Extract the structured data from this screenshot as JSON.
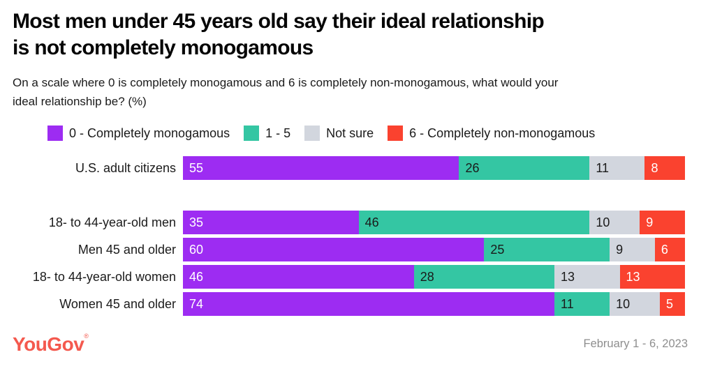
{
  "header": {
    "title_lines": [
      "Most men under 45 years old say their ideal relationship",
      "is not completely monogamous"
    ],
    "subtitle_lines": [
      "On a scale where 0 is completely monogamous and 6 is completely non-monogamous, what would your",
      "ideal relationship be? (%)"
    ]
  },
  "chart_data": {
    "type": "bar",
    "orientation": "horizontal",
    "stacked": true,
    "unit": "%",
    "xlim": [
      0,
      100
    ],
    "grid": false,
    "legend_position": "top",
    "categories": [
      "U.S. adult citizens",
      "18- to 44-year-old men",
      "Men 45 and older",
      "18- to 44-year-old women",
      "Women 45 and older"
    ],
    "gap_after_category_index": 0,
    "series": [
      {
        "name": "0 - Completely monogamous",
        "color": "#9d2cf2",
        "label_color": "#ffffff",
        "values": [
          55,
          35,
          60,
          46,
          74
        ]
      },
      {
        "name": "1 - 5",
        "color": "#34c6a3",
        "label_color": "#1a1a1a",
        "values": [
          26,
          46,
          25,
          28,
          11
        ]
      },
      {
        "name": "Not sure",
        "color": "#d2d6de",
        "label_color": "#1a1a1a",
        "values": [
          11,
          10,
          9,
          13,
          10
        ]
      },
      {
        "name": "6 - Completely non-monogamous",
        "color": "#fa422f",
        "label_color": "#ffffff",
        "values": [
          8,
          9,
          6,
          13,
          5
        ]
      }
    ]
  },
  "footer": {
    "logo_text": "YouGov",
    "registered_mark": "®",
    "logo_color": "#f4594e",
    "date_range": "February 1 - 6, 2023"
  }
}
